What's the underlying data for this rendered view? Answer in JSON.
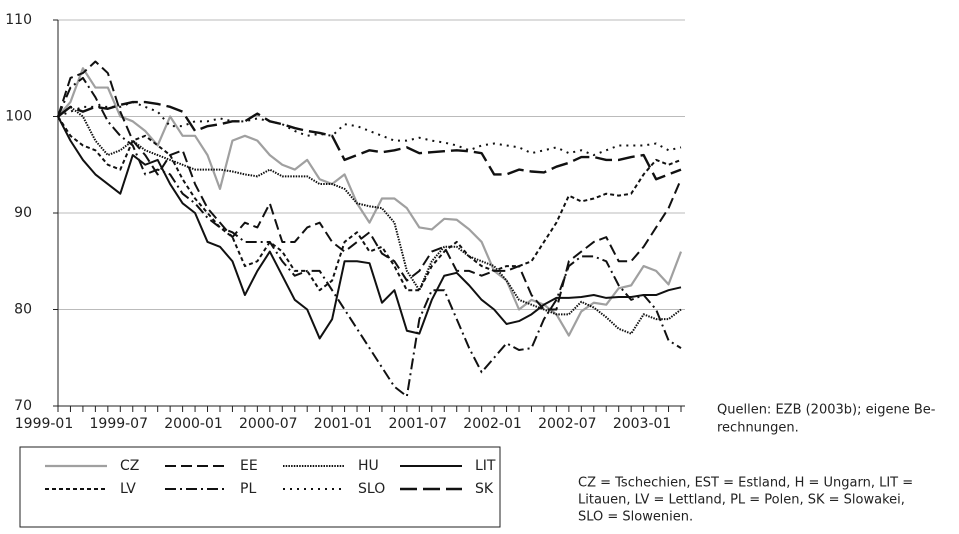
{
  "chart_data": {
    "type": "line",
    "x": [
      "1999-01",
      null,
      null,
      null,
      null,
      null,
      "1999-07",
      null,
      null,
      null,
      null,
      null,
      "2000-01",
      null,
      null,
      null,
      null,
      null,
      "2000-07",
      null,
      null,
      null,
      null,
      null,
      "2001-01",
      null,
      null,
      null,
      null,
      null,
      "2001-07",
      null,
      null,
      null,
      null,
      null,
      "2002-01",
      null,
      null,
      null,
      null,
      null,
      "2002-07",
      null,
      null,
      null,
      null,
      null,
      "2003-01",
      null,
      null
    ],
    "ylim": [
      70,
      110
    ],
    "yticks": [
      70,
      80,
      90,
      100,
      110
    ],
    "grid": true,
    "series": [
      {
        "name": "CZ",
        "color": "#a0a0a0",
        "values": [
          100,
          101.5,
          105,
          103,
          103,
          100,
          99.5,
          98.5,
          97,
          100,
          98,
          98,
          96,
          92.5,
          97.5,
          98,
          97.5,
          96,
          95,
          94.5,
          95.5,
          93.5,
          93,
          94,
          91,
          89,
          91.5,
          91.5,
          90.5,
          88.5,
          88.3,
          89.4,
          89.3,
          88.3,
          87,
          84,
          83,
          80,
          81,
          80.5,
          79.5,
          77.3,
          79.8,
          80.7,
          80.5,
          82.2,
          82.5,
          84.5,
          84,
          82.6,
          86
        ]
      },
      {
        "name": "EE",
        "color": "#111111",
        "values": [
          100,
          104,
          104.5,
          105.7,
          104.5,
          100.5,
          97.5,
          96,
          94,
          96,
          96.5,
          93,
          90.5,
          89,
          87.5,
          89,
          88.5,
          91,
          87,
          87,
          88.5,
          89,
          87,
          86,
          87,
          88,
          85.8,
          85,
          83,
          84,
          86,
          86.5,
          84,
          84,
          83.5,
          84,
          84,
          84.5,
          81.5,
          80,
          80,
          85,
          86,
          87,
          87.5,
          85,
          85,
          86.5,
          88.5,
          90.5,
          93.5
        ]
      },
      {
        "name": "HU",
        "color": "#111111",
        "values": [
          100,
          101,
          100,
          97.5,
          96,
          96.5,
          97.5,
          96.5,
          96,
          95.5,
          95,
          94.5,
          94.5,
          94.5,
          94.3,
          94,
          93.8,
          94.5,
          93.8,
          93.8,
          93.8,
          93,
          93,
          92.5,
          91,
          90.7,
          90.5,
          89,
          84,
          82,
          85,
          86.5,
          86.5,
          85.5,
          85,
          84.5,
          83,
          81,
          80.5,
          80,
          79.5,
          79.5,
          80.8,
          80.2,
          79.2,
          78,
          77.5,
          79.5,
          79,
          79,
          80
        ]
      },
      {
        "name": "LIT",
        "color": "#111111",
        "values": [
          100,
          97.5,
          95.5,
          94,
          93,
          92,
          96,
          95,
          95.5,
          93,
          91,
          90,
          87,
          86.5,
          85,
          81.5,
          84,
          86,
          83.5,
          81,
          80,
          77,
          79,
          85,
          85,
          84.8,
          80.7,
          82,
          77.8,
          77.5,
          81,
          83.5,
          83.8,
          82.5,
          81,
          80,
          78.5,
          78.8,
          79.5,
          80.5,
          81.2,
          81.2,
          81.3,
          81.5,
          81.2,
          81.3,
          81.3,
          81.5,
          81.5,
          82,
          82.3
        ]
      },
      {
        "name": "LV",
        "color": "#111111",
        "values": [
          100,
          98,
          97,
          96.5,
          95,
          94.5,
          97.5,
          98,
          97,
          96,
          93.5,
          91.5,
          90,
          88.5,
          87.5,
          84.5,
          85,
          87,
          86,
          84,
          84,
          82,
          83,
          87,
          88,
          86,
          86.5,
          84.5,
          82,
          82,
          84.5,
          86,
          87,
          85.5,
          84.5,
          84,
          84.5,
          84.5,
          85,
          87,
          89,
          91.8,
          91.2,
          91.5,
          92,
          91.8,
          92,
          94,
          95.5,
          95,
          95.5
        ]
      },
      {
        "name": "PL",
        "color": "#111111",
        "values": [
          100,
          103,
          104,
          102,
          99.5,
          98,
          97,
          94,
          94.5,
          94,
          92,
          91,
          89.5,
          88.5,
          88,
          87,
          87,
          87,
          85,
          83.5,
          84,
          84,
          82,
          80,
          78,
          76,
          74,
          72,
          71,
          79,
          82,
          82,
          79,
          76,
          73.5,
          75,
          76.5,
          75.8,
          76,
          79,
          81,
          84.5,
          85.5,
          85.5,
          85,
          82.5,
          81,
          81.5,
          80,
          76.8,
          76
        ]
      },
      {
        "name": "SLO",
        "color": "#111111",
        "values": [
          100,
          100.5,
          101,
          101,
          101,
          101,
          101.5,
          101,
          100.5,
          99,
          99,
          99.5,
          99.5,
          99.8,
          99.5,
          99.5,
          99.8,
          99.5,
          99.2,
          98.5,
          98,
          98.2,
          98,
          99.2,
          99,
          98.5,
          98,
          97.5,
          97.5,
          97.8,
          97.5,
          97.3,
          97,
          96.5,
          97,
          97.2,
          97,
          96.8,
          96.2,
          96.5,
          96.8,
          96.2,
          96.5,
          96,
          96.5,
          97,
          97,
          97,
          97.2,
          96.5,
          96.8
        ]
      },
      {
        "name": "SK",
        "color": "#111111",
        "values": [
          100,
          101,
          100.5,
          101,
          100.8,
          101.2,
          101.5,
          101.5,
          101.3,
          101,
          100.5,
          98.5,
          99,
          99.2,
          99.5,
          99.5,
          100.3,
          99.5,
          99.2,
          98.8,
          98.5,
          98.3,
          98,
          95.5,
          96,
          96.5,
          96.3,
          96.5,
          96.8,
          96.2,
          96.3,
          96.4,
          96.5,
          96.4,
          96.2,
          94,
          94,
          94.5,
          94.3,
          94.2,
          94.8,
          95.2,
          95.8,
          95.8,
          95.5,
          95.5,
          95.8,
          96,
          93.5,
          94,
          94.5
        ]
      }
    ],
    "source": [
      "Quellen: EZB (2003b); eigene Be-",
      "rechnungen."
    ],
    "note": [
      "CZ = Tschechien, EST = Estland, H = Ungarn, LIT =",
      "Litauen, LV = Lettland, PL = Polen, SK = Slowakei,",
      "SLO = Slowenien."
    ]
  }
}
